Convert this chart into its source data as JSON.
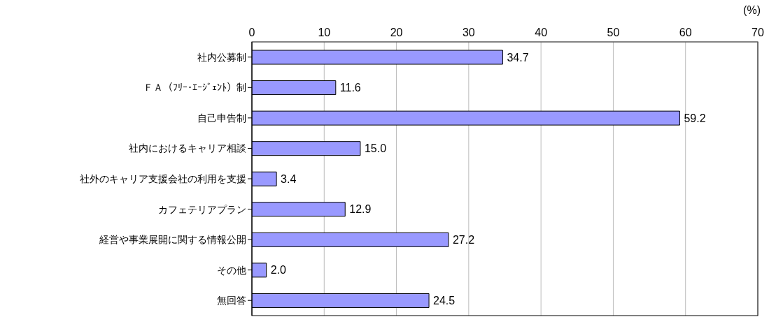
{
  "chart_data": {
    "type": "bar",
    "orientation": "horizontal",
    "xlabel": "(%)",
    "categories": [
      "社内公募制",
      "ＦＡ（ﾌﾘｰ･ｴｰｼﾞｪﾝﾄ）制",
      "自己申告制",
      "社内におけるキャリア相談",
      "社外のキャリア支援会社の利用を支援",
      "カフェテリアプラン",
      "経営や事業展開に関する情報公開",
      "その他",
      "無回答"
    ],
    "values": [
      34.7,
      11.6,
      59.2,
      15.0,
      3.4,
      12.9,
      27.2,
      2.0,
      24.5
    ],
    "value_labels": [
      "34.7",
      "11.6",
      "59.2",
      "15.0",
      "3.4",
      "12.9",
      "27.2",
      "2.0",
      "24.5"
    ],
    "color": "#9999ff",
    "xlim": [
      0,
      70
    ],
    "xticks": [
      0,
      10,
      20,
      30,
      40,
      50,
      60,
      70
    ],
    "grid": "x",
    "legend": false
  }
}
